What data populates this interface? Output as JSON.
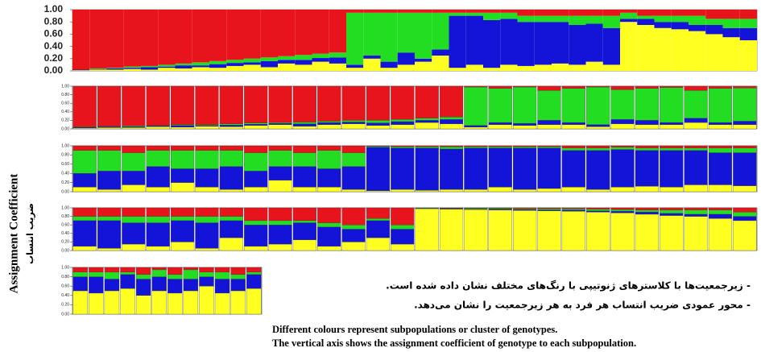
{
  "figure": {
    "ylabel": "Assignment Coefficient",
    "ylabel_fa": "ضریب انتساب",
    "notes_fa": [
      "- زیرجمعیت‌ها با کلاسترهای ژنوتیپی با رنگ‌های مختلف نشان داده شده است.",
      "- محور عمودی ضریب انتساب هر فرد به هر زیرجمعیت را نشان می‌دهد."
    ],
    "notes_en": [
      "Different colours represent subpopulations or cluster of genotypes.",
      "The vertical axis shows the assignment coefficient of genotype to each subpopulation."
    ]
  },
  "chart_data": [
    {
      "type": "stacked-bar",
      "ylim": [
        0,
        1
      ],
      "yticks": [
        {
          "value": 0,
          "label": "0.00"
        },
        {
          "value": 0.2,
          "label": "0.20"
        },
        {
          "value": 0.4,
          "label": "0.40"
        },
        {
          "value": 0.6,
          "label": "0.60"
        },
        {
          "value": 0.8,
          "label": "0.80"
        },
        {
          "value": 1,
          "label": "1.00"
        }
      ],
      "series": [
        {
          "color": "#ffff22",
          "values": [
            0.01,
            0.02,
            0.02,
            0.03,
            0.02,
            0.05,
            0.04,
            0.06,
            0.05,
            0.08,
            0.1,
            0.06,
            0.12,
            0.1,
            0.15,
            0.12,
            0.05,
            0.2,
            0.05,
            0.1,
            0.15,
            0.25,
            0.05,
            0.1,
            0.05,
            0.1,
            0.08,
            0.1,
            0.12,
            0.1,
            0.15,
            0.1,
            0.8,
            0.75,
            0.7,
            0.68,
            0.65,
            0.6,
            0.55,
            0.5
          ]
        },
        {
          "color": "#1414d8",
          "values": [
            0.01,
            0.01,
            0.02,
            0.02,
            0.04,
            0.02,
            0.05,
            0.03,
            0.06,
            0.05,
            0.04,
            0.1,
            0.06,
            0.08,
            0.06,
            0.1,
            0.05,
            0.05,
            0.1,
            0.2,
            0.05,
            0.1,
            0.85,
            0.8,
            0.78,
            0.75,
            0.72,
            0.7,
            0.68,
            0.65,
            0.62,
            0.6,
            0.05,
            0.1,
            0.1,
            0.12,
            0.1,
            0.15,
            0.15,
            0.2
          ]
        },
        {
          "color": "#22dd22",
          "values": [
            0,
            0.01,
            0.01,
            0.02,
            0.02,
            0.03,
            0.03,
            0.05,
            0.05,
            0.05,
            0.06,
            0.06,
            0.06,
            0.08,
            0.07,
            0.08,
            0.85,
            0.7,
            0.8,
            0.65,
            0.75,
            0.6,
            0.05,
            0.05,
            0.12,
            0.1,
            0.1,
            0.1,
            0.1,
            0.15,
            0.13,
            0.2,
            0.1,
            0.05,
            0.1,
            0.1,
            0.15,
            0.1,
            0.15,
            0.15
          ]
        },
        {
          "color": "#e8141c",
          "values": [
            0.98,
            0.96,
            0.95,
            0.93,
            0.92,
            0.9,
            0.88,
            0.86,
            0.84,
            0.82,
            0.8,
            0.78,
            0.76,
            0.74,
            0.72,
            0.7,
            0.05,
            0.05,
            0.05,
            0.05,
            0.05,
            0.05,
            0.05,
            0.05,
            0.05,
            0.05,
            0.1,
            0.1,
            0.1,
            0.1,
            0.1,
            0.1,
            0.05,
            0.1,
            0.1,
            0.1,
            0.1,
            0.15,
            0.15,
            0.15
          ]
        }
      ]
    },
    {
      "type": "stacked-bar",
      "ylim": [
        0,
        1
      ],
      "yticks": [
        {
          "value": 0,
          "label": "0.00"
        },
        {
          "value": 0.2,
          "label": "0.20"
        },
        {
          "value": 0.4,
          "label": "0.40"
        },
        {
          "value": 0.6,
          "label": "0.60"
        },
        {
          "value": 0.8,
          "label": "0.80"
        },
        {
          "value": 1,
          "label": "1.00"
        }
      ],
      "series": [
        {
          "color": "#ffff22",
          "values": [
            0.02,
            0.03,
            0.03,
            0.05,
            0.04,
            0.06,
            0.05,
            0.08,
            0.1,
            0.06,
            0.1,
            0.12,
            0.08,
            0.1,
            0.15,
            0.12,
            0.04,
            0.1,
            0.08,
            0.1,
            0.1,
            0.05,
            0.12,
            0.1,
            0.1,
            0.15,
            0.1,
            0.1
          ]
        },
        {
          "color": "#1414d8",
          "values": [
            0.02,
            0.02,
            0.02,
            0.02,
            0.04,
            0.02,
            0.04,
            0.03,
            0.03,
            0.06,
            0.05,
            0.04,
            0.06,
            0.07,
            0.05,
            0.1,
            0.04,
            0.05,
            0.05,
            0.1,
            0.05,
            0.05,
            0.1,
            0.1,
            0.05,
            0.1,
            0.05,
            0.08
          ]
        },
        {
          "color": "#22dd22",
          "values": [
            0.01,
            0.01,
            0.02,
            0.01,
            0.02,
            0.02,
            0.03,
            0.03,
            0.02,
            0.04,
            0.03,
            0.04,
            0.06,
            0.05,
            0.05,
            0.06,
            0.9,
            0.8,
            0.85,
            0.7,
            0.8,
            0.88,
            0.7,
            0.75,
            0.82,
            0.65,
            0.8,
            0.78
          ]
        },
        {
          "color": "#e8141c",
          "values": [
            0.95,
            0.94,
            0.93,
            0.92,
            0.9,
            0.9,
            0.88,
            0.86,
            0.85,
            0.84,
            0.82,
            0.8,
            0.8,
            0.78,
            0.75,
            0.72,
            0.02,
            0.05,
            0.02,
            0.1,
            0.05,
            0.02,
            0.08,
            0.05,
            0.03,
            0.1,
            0.05,
            0.04
          ]
        }
      ]
    },
    {
      "type": "stacked-bar",
      "ylim": [
        0,
        1
      ],
      "yticks": [
        {
          "value": 0,
          "label": "0.00"
        },
        {
          "value": 0.2,
          "label": "0.20"
        },
        {
          "value": 0.4,
          "label": "0.40"
        },
        {
          "value": 0.6,
          "label": "0.60"
        },
        {
          "value": 0.8,
          "label": "0.80"
        },
        {
          "value": 1,
          "label": "1.00"
        }
      ],
      "series": [
        {
          "color": "#ffff22",
          "values": [
            0.1,
            0.05,
            0.15,
            0.1,
            0.2,
            0.1,
            0.05,
            0.1,
            0.25,
            0.1,
            0.1,
            0.05,
            0.02,
            0.05,
            0.03,
            0.05,
            0.05,
            0.1,
            0.05,
            0.07,
            0.1,
            0.05,
            0.1,
            0.12,
            0.1,
            0.15,
            0.15,
            0.13
          ]
        },
        {
          "color": "#1414d8",
          "values": [
            0.3,
            0.4,
            0.3,
            0.45,
            0.3,
            0.4,
            0.5,
            0.35,
            0.3,
            0.45,
            0.4,
            0.5,
            0.95,
            0.9,
            0.92,
            0.88,
            0.9,
            0.85,
            0.9,
            0.88,
            0.8,
            0.85,
            0.82,
            0.78,
            0.8,
            0.75,
            0.7,
            0.72
          ]
        },
        {
          "color": "#22dd22",
          "values": [
            0.5,
            0.45,
            0.4,
            0.35,
            0.4,
            0.4,
            0.35,
            0.4,
            0.35,
            0.3,
            0.4,
            0.3,
            0.02,
            0.03,
            0.03,
            0.05,
            0.03,
            0.03,
            0.03,
            0.03,
            0.05,
            0.05,
            0.05,
            0.05,
            0.05,
            0.05,
            0.1,
            0.1
          ]
        },
        {
          "color": "#e8141c",
          "values": [
            0.1,
            0.1,
            0.15,
            0.1,
            0.1,
            0.1,
            0.1,
            0.15,
            0.1,
            0.15,
            0.1,
            0.15,
            0.01,
            0.02,
            0.02,
            0.02,
            0.02,
            0.02,
            0.02,
            0.02,
            0.05,
            0.05,
            0.03,
            0.05,
            0.05,
            0.05,
            0.05,
            0.05
          ]
        }
      ]
    },
    {
      "type": "stacked-bar",
      "ylim": [
        0,
        1
      ],
      "yticks": [
        {
          "value": 0,
          "label": "0.00"
        },
        {
          "value": 0.2,
          "label": "0.20"
        },
        {
          "value": 0.4,
          "label": "0.40"
        },
        {
          "value": 0.6,
          "label": "0.60"
        },
        {
          "value": 0.8,
          "label": "0.80"
        },
        {
          "value": 1,
          "label": "1.00"
        }
      ],
      "series": [
        {
          "color": "#ffff22",
          "values": [
            0.1,
            0.05,
            0.15,
            0.1,
            0.2,
            0.05,
            0.3,
            0.1,
            0.15,
            0.25,
            0.1,
            0.2,
            0.3,
            0.15,
            0.98,
            0.97,
            0.96,
            0.95,
            0.94,
            0.93,
            0.92,
            0.9,
            0.88,
            0.85,
            0.82,
            0.8,
            0.75,
            0.7
          ]
        },
        {
          "color": "#1414d8",
          "values": [
            0.6,
            0.65,
            0.5,
            0.55,
            0.5,
            0.6,
            0.4,
            0.5,
            0.45,
            0.4,
            0.45,
            0.3,
            0.4,
            0.35,
            0.01,
            0.01,
            0.01,
            0.02,
            0.02,
            0.02,
            0.03,
            0.03,
            0.04,
            0.05,
            0.05,
            0.05,
            0.1,
            0.1
          ]
        },
        {
          "color": "#22dd22",
          "values": [
            0.1,
            0.1,
            0.15,
            0.15,
            0.1,
            0.15,
            0.1,
            0.1,
            0.1,
            0.05,
            0.1,
            0.1,
            0.05,
            0.1,
            0.01,
            0.01,
            0.02,
            0.02,
            0.02,
            0.03,
            0.03,
            0.04,
            0.04,
            0.05,
            0.08,
            0.1,
            0.1,
            0.1
          ]
        },
        {
          "color": "#e8141c",
          "values": [
            0.2,
            0.2,
            0.2,
            0.2,
            0.2,
            0.2,
            0.2,
            0.3,
            0.3,
            0.3,
            0.35,
            0.4,
            0.25,
            0.4,
            0,
            0.01,
            0.01,
            0.01,
            0.02,
            0.02,
            0.02,
            0.03,
            0.04,
            0.05,
            0.05,
            0.05,
            0.05,
            0.1
          ]
        }
      ]
    },
    {
      "type": "stacked-bar",
      "ylim": [
        0,
        1
      ],
      "yticks": [
        {
          "value": 0,
          "label": "0.00"
        },
        {
          "value": 0.2,
          "label": "0.20"
        },
        {
          "value": 0.4,
          "label": "0.40"
        },
        {
          "value": 0.6,
          "label": "0.60"
        },
        {
          "value": 0.8,
          "label": "0.80"
        },
        {
          "value": 1,
          "label": "1.00"
        }
      ],
      "series": [
        {
          "color": "#ffff22",
          "values": [
            0.5,
            0.45,
            0.5,
            0.55,
            0.4,
            0.5,
            0.45,
            0.5,
            0.6,
            0.45,
            0.5,
            0.55
          ]
        },
        {
          "color": "#1414d8",
          "values": [
            0.3,
            0.35,
            0.25,
            0.3,
            0.35,
            0.3,
            0.3,
            0.25,
            0.2,
            0.3,
            0.25,
            0.3
          ]
        },
        {
          "color": "#22dd22",
          "values": [
            0.1,
            0.1,
            0.15,
            0.05,
            0.1,
            0.15,
            0.1,
            0.2,
            0.1,
            0.15,
            0.1,
            0.05
          ]
        },
        {
          "color": "#e8141c",
          "values": [
            0.1,
            0.1,
            0.1,
            0.1,
            0.15,
            0.05,
            0.15,
            0.05,
            0.1,
            0.1,
            0.15,
            0.1
          ]
        }
      ]
    }
  ]
}
